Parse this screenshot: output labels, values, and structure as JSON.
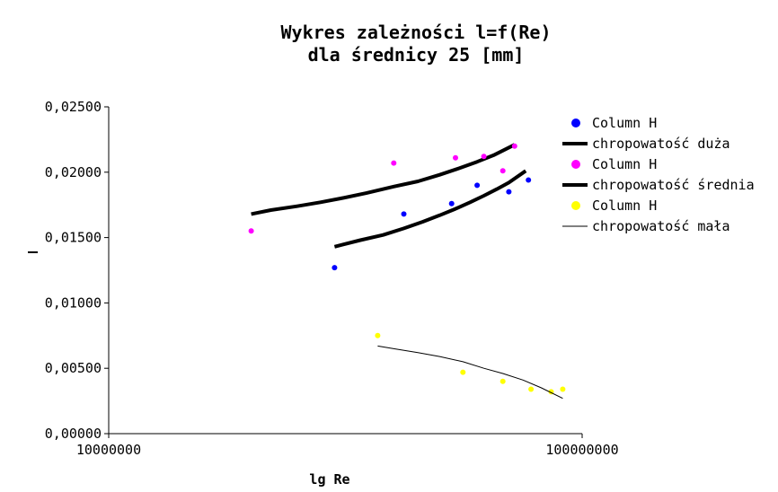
{
  "chart_data": {
    "type": "scatter",
    "title_lines": [
      "Wykres zależności l=f(Re)",
      "dla średnicy 25 [mm]"
    ],
    "xlabel": "lg Re",
    "ylabel": "",
    "x_scale": "log",
    "xlim": [
      10000000,
      100000000
    ],
    "ylim": [
      0,
      0.025
    ],
    "y_ticks": [
      0,
      0.005,
      0.01,
      0.015,
      0.02,
      0.025
    ],
    "y_tick_labels": [
      "0,00000",
      "0,00500",
      "0,01000",
      "0,01500",
      "0,02000",
      "0,02500"
    ],
    "x_ticks": [
      10000000,
      100000000
    ],
    "x_tick_labels": [
      "10000000",
      "100000000"
    ],
    "grid": false,
    "legend_position": "right",
    "series": [
      {
        "name": "Column H",
        "kind": "points",
        "color": "#0000ff",
        "x": [
          30000000,
          42000000,
          53000000,
          60000000,
          70000000,
          77000000
        ],
        "y": [
          0.0127,
          0.0168,
          0.0176,
          0.019,
          0.0185,
          0.0194
        ]
      },
      {
        "name": "chropowatość duża",
        "kind": "line",
        "color": "#000000",
        "width": 4,
        "x": [
          20000000,
          22000000,
          25000000,
          28000000,
          31000000,
          35000000,
          40000000,
          45000000,
          50000000,
          55000000,
          60000000,
          65000000,
          72000000
        ],
        "y": [
          0.0168,
          0.0171,
          0.0174,
          0.0177,
          0.018,
          0.0184,
          0.0189,
          0.0193,
          0.0198,
          0.0203,
          0.0208,
          0.0213,
          0.0221
        ]
      },
      {
        "name": "Column H",
        "kind": "points",
        "color": "#ff00ff",
        "x": [
          20000000,
          40000000,
          54000000,
          62000000,
          68000000,
          72000000
        ],
        "y": [
          0.0155,
          0.0207,
          0.0211,
          0.0212,
          0.0201,
          0.022
        ]
      },
      {
        "name": "chropowatość średnia",
        "kind": "line",
        "color": "#000000",
        "width": 4,
        "x": [
          30000000,
          34000000,
          38000000,
          42000000,
          46000000,
          50000000,
          54000000,
          58000000,
          62000000,
          66000000,
          70000000,
          76000000
        ],
        "y": [
          0.0143,
          0.0148,
          0.0152,
          0.0157,
          0.0162,
          0.0167,
          0.0172,
          0.0177,
          0.0182,
          0.0187,
          0.0192,
          0.0201
        ]
      },
      {
        "name": "Column H",
        "kind": "points",
        "color": "#ffff00",
        "x": [
          37000000,
          56000000,
          68000000,
          78000000,
          86000000,
          91000000
        ],
        "y": [
          0.0075,
          0.0047,
          0.004,
          0.0034,
          0.0032,
          0.0034
        ]
      },
      {
        "name": "chropowatość mała",
        "kind": "line",
        "color": "#000000",
        "width": 1,
        "x": [
          37000000,
          40000000,
          45000000,
          50000000,
          56000000,
          62000000,
          68000000,
          75000000,
          82000000,
          91000000
        ],
        "y": [
          0.0067,
          0.0065,
          0.0062,
          0.0059,
          0.0055,
          0.005,
          0.0046,
          0.0041,
          0.0035,
          0.0027
        ]
      }
    ]
  }
}
